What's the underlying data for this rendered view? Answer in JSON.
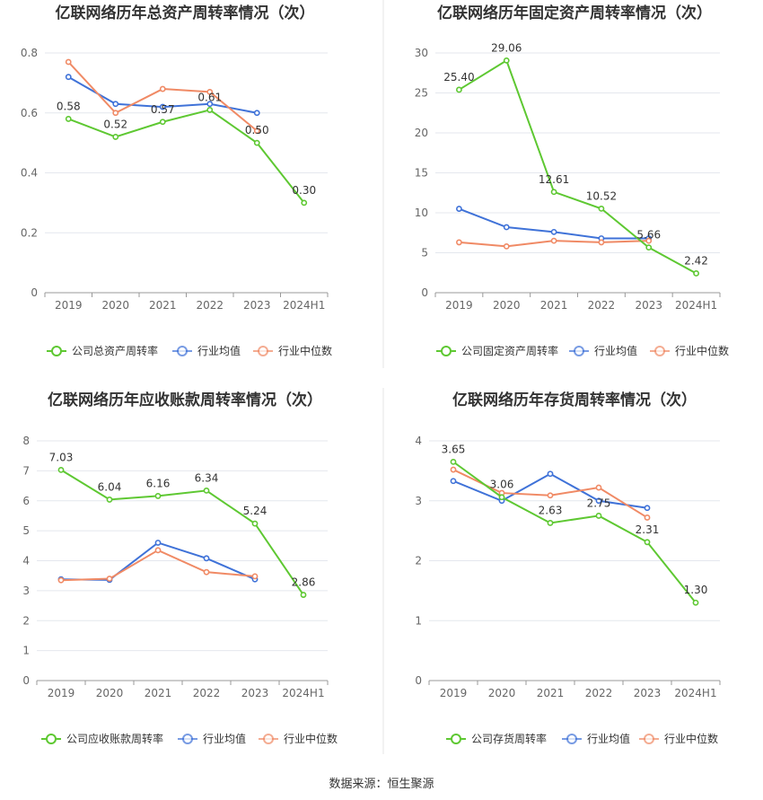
{
  "source_text": "数据来源：恒生聚源",
  "colors": {
    "company": "#5ec832",
    "average": "#3f72d8",
    "median": "#f08a65"
  },
  "chart_data": [
    {
      "type": "line",
      "title": "亿联网络历年总资产周转率情况（次）",
      "categories": [
        "2019",
        "2020",
        "2021",
        "2022",
        "2023",
        "2024H1"
      ],
      "ylim": [
        0,
        0.8
      ],
      "yticks": [
        "0",
        "0.2",
        "0.4",
        "0.6",
        "0.8"
      ],
      "series": [
        {
          "name": "公司总资产周转率",
          "values": [
            0.58,
            0.52,
            0.57,
            0.61,
            0.5,
            0.3
          ],
          "labels": [
            "0.58",
            "0.52",
            "0.57",
            "0.61",
            "0.50",
            "0.30"
          ]
        },
        {
          "name": "行业均值",
          "values": [
            0.72,
            0.63,
            0.62,
            0.63,
            0.6,
            null
          ]
        },
        {
          "name": "行业中位数",
          "values": [
            0.77,
            0.6,
            0.68,
            0.67,
            0.54,
            null
          ]
        }
      ],
      "legend": "bottom",
      "grid": true
    },
    {
      "type": "line",
      "title": "亿联网络历年固定资产周转率情况（次）",
      "categories": [
        "2019",
        "2020",
        "2021",
        "2022",
        "2023",
        "2024H1"
      ],
      "ylim": [
        0,
        30
      ],
      "yticks": [
        "0",
        "5",
        "10",
        "15",
        "20",
        "25",
        "30"
      ],
      "series": [
        {
          "name": "公司固定资产周转率",
          "values": [
            25.4,
            29.06,
            12.61,
            10.52,
            5.66,
            2.42
          ],
          "labels": [
            "25.40",
            "29.06",
            "12.61",
            "10.52",
            "5.66",
            "2.42"
          ]
        },
        {
          "name": "行业均值",
          "values": [
            10.5,
            8.2,
            7.6,
            6.8,
            6.8,
            null
          ]
        },
        {
          "name": "行业中位数",
          "values": [
            6.3,
            5.8,
            6.5,
            6.3,
            6.5,
            null
          ]
        }
      ],
      "legend": "bottom",
      "grid": true
    },
    {
      "type": "line",
      "title": "亿联网络历年应收账款周转率情况（次）",
      "categories": [
        "2019",
        "2020",
        "2021",
        "2022",
        "2023",
        "2024H1"
      ],
      "ylim": [
        0,
        8
      ],
      "yticks": [
        "0",
        "1",
        "2",
        "3",
        "4",
        "5",
        "6",
        "7",
        "8"
      ],
      "series": [
        {
          "name": "公司应收账款周转率",
          "values": [
            7.03,
            6.04,
            6.16,
            6.34,
            5.24,
            2.86
          ],
          "labels": [
            "7.03",
            "6.04",
            "6.16",
            "6.34",
            "5.24",
            "2.86"
          ]
        },
        {
          "name": "行业均值",
          "values": [
            3.38,
            3.36,
            4.6,
            4.08,
            3.38,
            null
          ]
        },
        {
          "name": "行业中位数",
          "values": [
            3.35,
            3.4,
            4.35,
            3.62,
            3.48,
            null
          ]
        }
      ],
      "legend": "bottom",
      "grid": true
    },
    {
      "type": "line",
      "title": "亿联网络历年存货周转率情况（次）",
      "categories": [
        "2019",
        "2020",
        "2021",
        "2022",
        "2023",
        "2024H1"
      ],
      "ylim": [
        0,
        4
      ],
      "yticks": [
        "0",
        "1",
        "2",
        "3",
        "4"
      ],
      "series": [
        {
          "name": "公司存货周转率",
          "values": [
            3.65,
            3.06,
            2.63,
            2.75,
            2.31,
            1.3
          ],
          "labels": [
            "3.65",
            "3.06",
            "2.63",
            "2.75",
            "2.31",
            "1.30"
          ]
        },
        {
          "name": "行业均值",
          "values": [
            3.33,
            3.0,
            3.45,
            3.0,
            2.88,
            null
          ]
        },
        {
          "name": "行业中位数",
          "values": [
            3.52,
            3.13,
            3.09,
            3.22,
            2.72,
            null
          ]
        }
      ],
      "legend": "bottom",
      "grid": true
    }
  ]
}
